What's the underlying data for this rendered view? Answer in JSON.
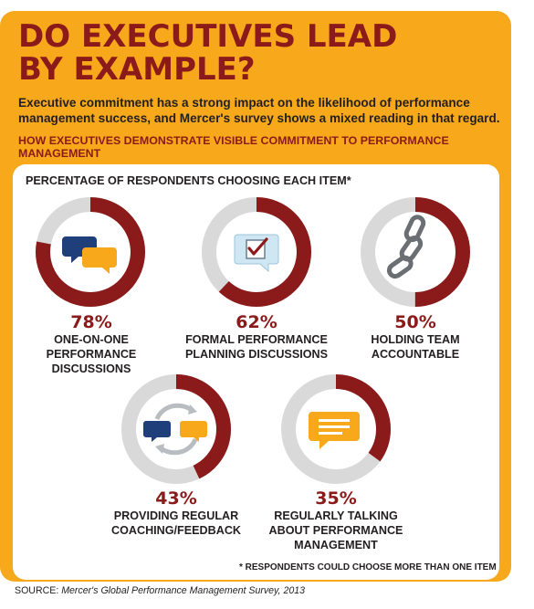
{
  "header": {
    "title": "DO EXECUTIVES LEAD\nBY EXAMPLE?",
    "intro": "Executive commitment has a strong impact on the likelihood of performance management success, and Mercer's survey shows a mixed reading in that regard.",
    "subhead": "HOW EXECUTIVES DEMONSTRATE VISIBLE COMMITMENT TO PERFORMANCE MANAGEMENT"
  },
  "chart_data": {
    "type": "pie",
    "title": "PERCENTAGE OF RESPONDENTS CHOOSING EACH ITEM*",
    "categories": [
      "ONE-ON-ONE PERFORMANCE DISCUSSIONS",
      "FORMAL PERFORMANCE PLANNING DISCUSSIONS",
      "HOLDING TEAM ACCOUNTABLE",
      "PROVIDING REGULAR COACHING/FEEDBACK",
      "REGULARLY TALKING ABOUT PERFORMANCE MANAGEMENT"
    ],
    "values": [
      78,
      62,
      50,
      43,
      35
    ],
    "unit": "%",
    "items": [
      {
        "value": 78,
        "pct_label": "78%",
        "label": "ONE-ON-ONE\nPERFORMANCE\nDISCUSSIONS",
        "icon": "speech-bubbles-icon"
      },
      {
        "value": 62,
        "pct_label": "62%",
        "label": "FORMAL PERFORMANCE\nPLANNING DISCUSSIONS",
        "icon": "checkbox-form-icon"
      },
      {
        "value": 50,
        "pct_label": "50%",
        "label": "HOLDING TEAM\nACCOUNTABLE",
        "icon": "chain-link-icon"
      },
      {
        "value": 43,
        "pct_label": "43%",
        "label": "PROVIDING REGULAR\nCOACHING/FEEDBACK",
        "icon": "cycle-arrows-bubbles-icon"
      },
      {
        "value": 35,
        "pct_label": "35%",
        "label": "REGULARLY TALKING\nABOUT PERFORMANCE\nMANAGEMENT",
        "icon": "message-bubble-icon"
      }
    ],
    "colors": {
      "filled": "#8b1a1a",
      "remainder": "#d9d9d9",
      "accent": "#f7a81b",
      "icon_blue": "#1f3f7a"
    }
  },
  "footnote": "* RESPONDENTS COULD CHOOSE MORE THAN ONE ITEM",
  "source": {
    "prefix": "SOURCE: ",
    "text": "Mercer's Global Performance Management Survey, 2013"
  }
}
